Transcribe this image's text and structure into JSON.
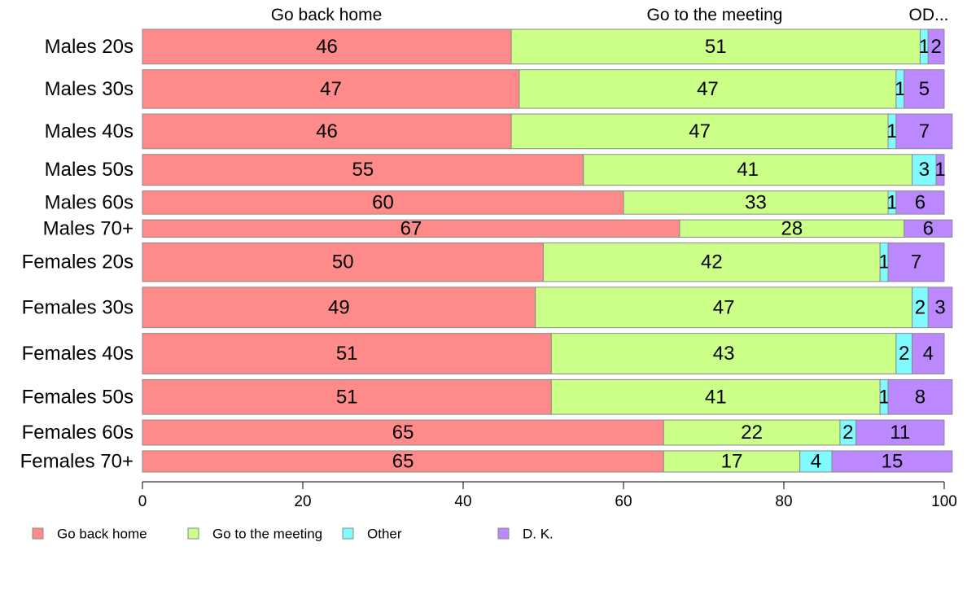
{
  "chart_data": {
    "type": "bar",
    "orientation": "horizontal",
    "stacked": true,
    "categories": [
      "Males 20s",
      "Males 30s",
      "Males 40s",
      "Males 50s",
      "Males 60s",
      "Males 70+",
      "Females 20s",
      "Females 30s",
      "Females 40s",
      "Females 50s",
      "Females 60s",
      "Females 70+"
    ],
    "bar_weights": [
      0.9,
      1.0,
      0.9,
      0.8,
      0.6,
      0.45,
      1.0,
      1.05,
      1.05,
      0.9,
      0.65,
      0.55
    ],
    "series": [
      {
        "name": "Go back home",
        "color": "#ff8a8a",
        "values": [
          46,
          47,
          46,
          55,
          60,
          67,
          50,
          49,
          51,
          51,
          65,
          65
        ],
        "labels": [
          "46",
          "47",
          "46",
          "55",
          "60",
          "67",
          "50",
          "49",
          "51",
          "51",
          "65",
          "65"
        ]
      },
      {
        "name": "Go to the meeting",
        "color": "#ccff88",
        "values": [
          51,
          47,
          47,
          41,
          33,
          28,
          42,
          47,
          43,
          41,
          22,
          17
        ],
        "labels": [
          "51",
          "47",
          "47",
          "41",
          "33",
          "28",
          "42",
          "47",
          "43",
          "41",
          "22",
          "17"
        ]
      },
      {
        "name": "Other",
        "color": "#7ffaff",
        "values": [
          1,
          1,
          1,
          3,
          1,
          0,
          1,
          2,
          2,
          1,
          2,
          4
        ],
        "labels": [
          "1",
          "1",
          "1",
          "3",
          "1",
          "",
          "1",
          "2",
          "2",
          "1",
          "2",
          "4"
        ]
      },
      {
        "name": "D. K.",
        "color": "#bb88ff",
        "values": [
          2,
          5,
          7,
          1,
          6,
          6,
          7,
          3,
          4,
          8,
          11,
          15
        ],
        "labels": [
          "2",
          "5",
          "7",
          "1",
          "6",
          "6",
          "7",
          "3",
          "4",
          "8",
          "11",
          "15"
        ]
      }
    ],
    "top_headers": [
      "Go back home",
      "Go to the meeting",
      "OD..."
    ],
    "xlim": [
      0,
      100
    ],
    "xticks": [
      "0",
      "20",
      "40",
      "60",
      "80",
      "100"
    ],
    "title": "",
    "xlabel": "",
    "ylabel": "",
    "grid": false,
    "legend_position": "bottom",
    "border_color": "#8a8a8a"
  }
}
